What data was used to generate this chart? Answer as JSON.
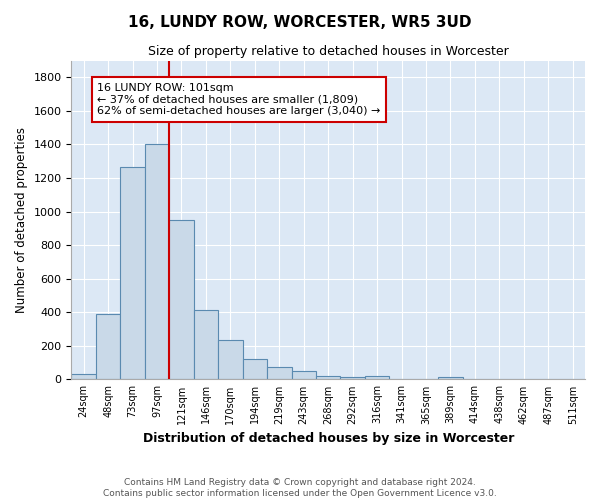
{
  "title": "16, LUNDY ROW, WORCESTER, WR5 3UD",
  "subtitle": "Size of property relative to detached houses in Worcester",
  "xlabel": "Distribution of detached houses by size in Worcester",
  "ylabel": "Number of detached properties",
  "bar_color": "#c9d9e8",
  "bar_edge_color": "#5a8ab0",
  "background_color": "#dce8f5",
  "bin_labels": [
    "24sqm",
    "48sqm",
    "73sqm",
    "97sqm",
    "121sqm",
    "146sqm",
    "170sqm",
    "194sqm",
    "219sqm",
    "243sqm",
    "268sqm",
    "292sqm",
    "316sqm",
    "341sqm",
    "365sqm",
    "389sqm",
    "414sqm",
    "438sqm",
    "462sqm",
    "487sqm",
    "511sqm"
  ],
  "bar_heights": [
    30,
    390,
    1265,
    1400,
    950,
    415,
    235,
    120,
    75,
    50,
    20,
    15,
    20,
    0,
    0,
    15,
    0,
    0,
    0,
    0,
    0
  ],
  "red_line_x": 3.5,
  "red_line_color": "#cc0000",
  "annotation_text": "16 LUNDY ROW: 101sqm\n← 37% of detached houses are smaller (1,809)\n62% of semi-detached houses are larger (3,040) →",
  "annotation_box_color": "white",
  "annotation_box_edge": "#cc0000",
  "ylim": [
    0,
    1900
  ],
  "yticks": [
    0,
    200,
    400,
    600,
    800,
    1000,
    1200,
    1400,
    1600,
    1800
  ],
  "footer_text": "Contains HM Land Registry data © Crown copyright and database right 2024.\nContains public sector information licensed under the Open Government Licence v3.0.",
  "figsize": [
    6.0,
    5.0
  ],
  "dpi": 100
}
